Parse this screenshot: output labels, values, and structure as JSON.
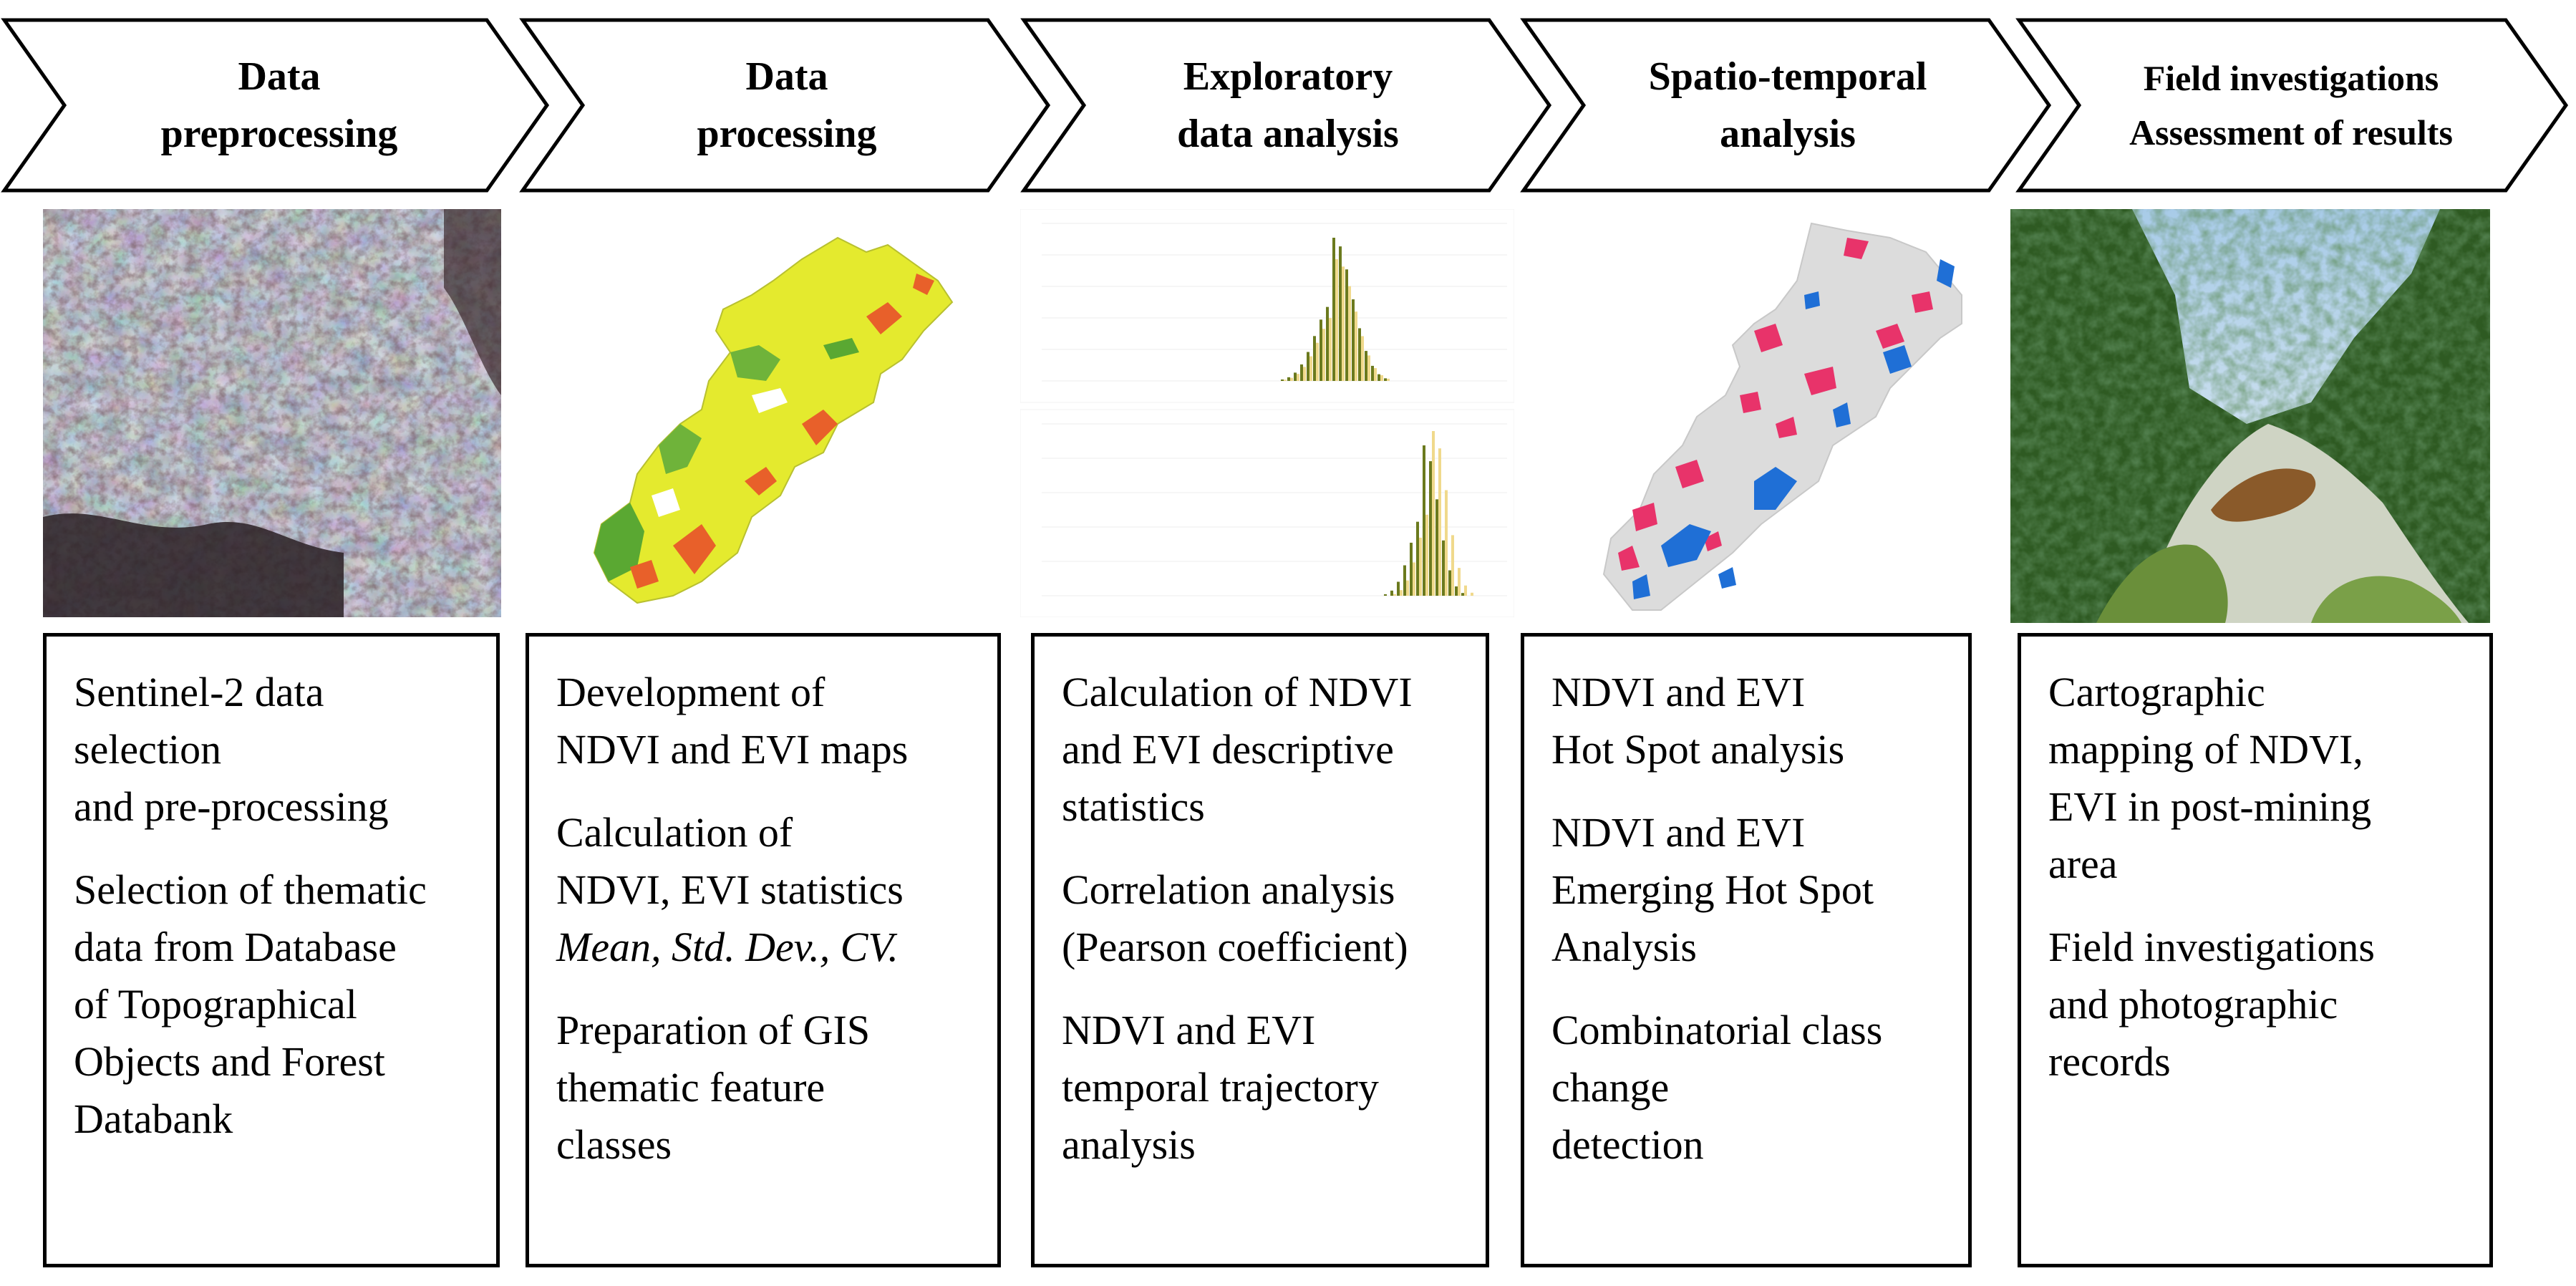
{
  "stages": [
    {
      "title": "Data\npreprocessing",
      "image": "sentinel-2-satellite-image",
      "paragraphs": [
        "Sentinel-2 data\nselection\nand pre-processing",
        "Selection of thematic\ndata from Database\nof Topographical\nObjects and Forest\nDatabank"
      ]
    },
    {
      "title": "Data\nprocessing",
      "image": "ndvi-evi-map",
      "paragraphs": [
        "Development of\nNDVI and EVI maps",
        "Calculation of\nNDVI, EVI statistics"
      ],
      "italic_line": "Mean, Std. Dev., CV.",
      "paragraphs_after": [
        "Preparation of GIS\nthematic feature\nclasses"
      ]
    },
    {
      "title": "Exploratory\ndata analysis",
      "image": "histogram-charts",
      "paragraphs": [
        "Calculation of NDVI\nand EVI descriptive\nstatistics",
        "Correlation analysis\n(Pearson coefficient)",
        "NDVI and EVI\ntemporal trajectory\nanalysis"
      ]
    },
    {
      "title": "Spatio-temporal\nanalysis",
      "image": "hot-spot-map",
      "paragraphs": [
        "NDVI and EVI\nHot Spot analysis",
        "NDVI and EVI\nEmerging Hot Spot\nAnalysis",
        "Combinatorial class\nchange\ndetection"
      ]
    },
    {
      "title": "Field investigations\nAssessment of results",
      "image": "field-photo",
      "paragraphs": [
        "Cartographic\nmapping of NDVI,\nEVI in post-mining\narea",
        "Field investigations\nand photographic\nrecords"
      ]
    }
  ],
  "colors": {
    "outline": "#000000",
    "map_yellow": "#e8ee2a",
    "map_green": "#5aa832",
    "map_orange": "#e8602a",
    "hotspot_pink": "#e8336a",
    "coldspot_blue": "#1f6fd6",
    "bar_olive": "#6b7a1e",
    "bar_cream": "#f0d98c"
  }
}
